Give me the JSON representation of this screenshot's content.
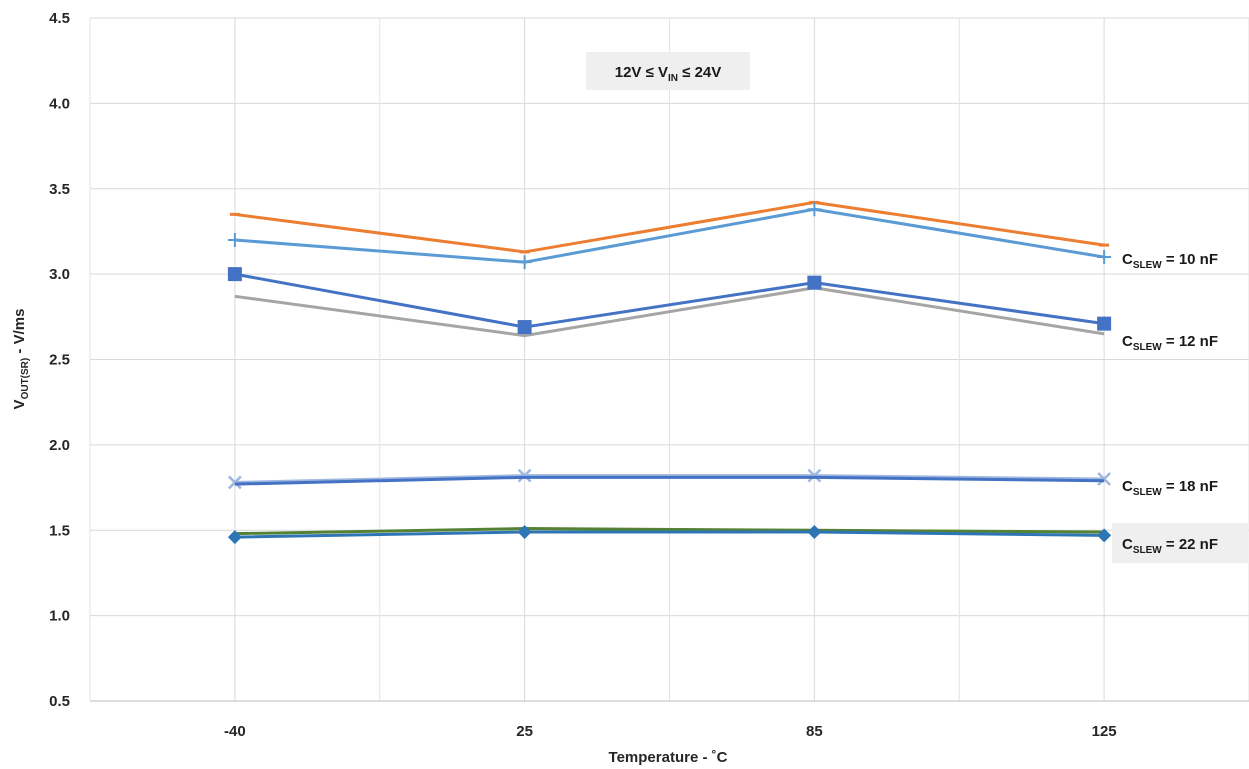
{
  "chart_data": {
    "type": "line",
    "xlabel": "Temperature - ˚C",
    "ylabel": {
      "main": "V",
      "sub": "OUT(SR)",
      "rest": " - V/ms"
    },
    "categories": [
      "-40",
      "25",
      "85",
      "125"
    ],
    "ylim": [
      0.5,
      4.5
    ],
    "yticks": [
      "0.5",
      "1.0",
      "1.5",
      "2.0",
      "2.5",
      "3.0",
      "3.5",
      "4.0",
      "4.5"
    ],
    "grid": true,
    "condition_label": {
      "a": "12V ≤ V",
      "sub": "IN",
      "b": " ≤ 24V"
    },
    "annotations": [
      {
        "main": "C",
        "sub": "SLEW",
        "rest": " = 10 nF",
        "y": 3.1
      },
      {
        "main": "C",
        "sub": "SLEW",
        "rest": " = 12 nF",
        "y": 2.62
      },
      {
        "main": "C",
        "sub": "SLEW",
        "rest": " = 18 nF",
        "y": 1.77
      },
      {
        "main": "C",
        "sub": "SLEW",
        "rest": " = 22 nF",
        "y": 1.43,
        "boxed": true
      }
    ],
    "series": [
      {
        "values": [
          3.35,
          3.13,
          3.42,
          3.17
        ],
        "color": "#ED7D31",
        "marker": "dash"
      },
      {
        "values": [
          3.2,
          3.07,
          3.38,
          3.1
        ],
        "color": "#5B9BD5",
        "marker": "plus"
      },
      {
        "values": [
          2.87,
          2.64,
          2.92,
          2.65
        ],
        "color": "#A5A5A5",
        "marker": "none"
      },
      {
        "values": [
          3.0,
          2.69,
          2.95,
          2.71
        ],
        "color": "#4472C4",
        "marker": "square"
      },
      {
        "values": [
          1.78,
          1.82,
          1.82,
          1.8
        ],
        "color": "#9DB7E0",
        "marker": "x"
      },
      {
        "values": [
          1.77,
          1.81,
          1.81,
          1.79
        ],
        "color": "#4472C4",
        "marker": "none"
      },
      {
        "values": [
          1.48,
          1.51,
          1.5,
          1.49
        ],
        "color": "#548235",
        "marker": "none"
      },
      {
        "values": [
          1.46,
          1.49,
          1.49,
          1.47
        ],
        "color": "#2E75B6",
        "marker": "diamond"
      }
    ]
  }
}
